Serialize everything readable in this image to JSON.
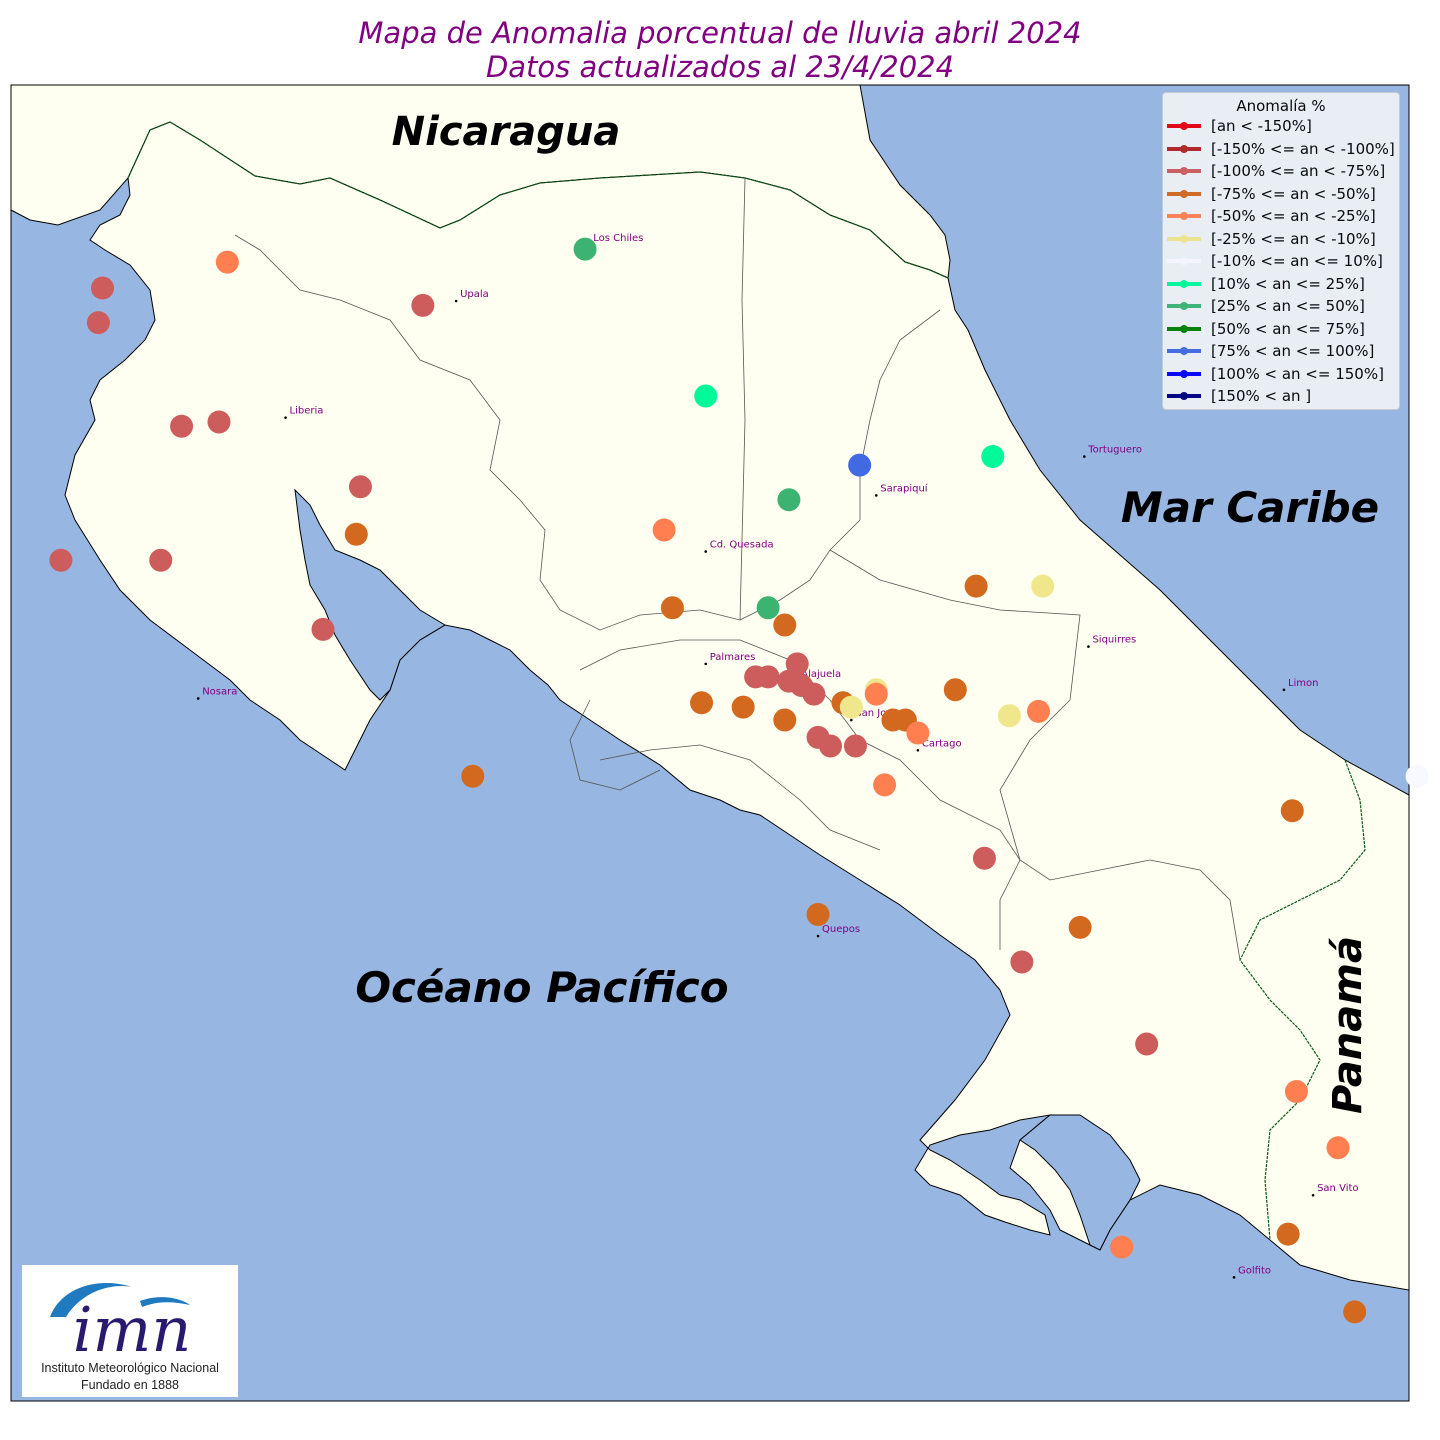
{
  "title_line1": "Mapa de Anomalia porcentual de lluvia abril 2024",
  "title_line2": "Datos actualizados al 23/4/2024",
  "colors": {
    "ocean": "#98b6e2",
    "land": "#fefff0"
  },
  "region_labels": {
    "nicaragua": "Nicaragua",
    "caribe": "Mar Caribe",
    "pacifico": "Océano Pacífico",
    "panama": "Panamá"
  },
  "cities": [
    {
      "name": "Los Chiles",
      "lon": -84.71,
      "lat": 11.03
    },
    {
      "name": "Upala",
      "lon": -85.03,
      "lat": 10.9
    },
    {
      "name": "Liberia",
      "lon": -85.44,
      "lat": 10.63
    },
    {
      "name": "Tortuguero",
      "lon": -83.52,
      "lat": 10.54
    },
    {
      "name": "Sarapiquí",
      "lon": -84.02,
      "lat": 10.45
    },
    {
      "name": "Cd. Quesada",
      "lon": -84.43,
      "lat": 10.32
    },
    {
      "name": "Siquirres",
      "lon": -83.51,
      "lat": 10.1
    },
    {
      "name": "Palmares",
      "lon": -84.43,
      "lat": 10.06
    },
    {
      "name": "Nosara",
      "lon": -85.65,
      "lat": 9.98
    },
    {
      "name": "Alajuela",
      "lon": -84.21,
      "lat": 10.02
    },
    {
      "name": "Limon",
      "lon": -83.04,
      "lat": 10.0
    },
    {
      "name": "San Jose",
      "lon": -84.08,
      "lat": 9.93
    },
    {
      "name": "Cartago",
      "lon": -83.92,
      "lat": 9.86
    },
    {
      "name": "Quepos",
      "lon": -84.16,
      "lat": 9.43
    },
    {
      "name": "San Vito",
      "lon": -82.97,
      "lat": 8.83
    },
    {
      "name": "Golfito",
      "lon": -83.16,
      "lat": 8.64
    }
  ],
  "legend": {
    "title": "Anomalía %",
    "items": [
      {
        "label": "[an < -150%]",
        "color": "#e5000e"
      },
      {
        "label": "[-150% <= an < -100%]",
        "color": "#b22222"
      },
      {
        "label": "[-100% <= an < -75%]",
        "color": "#cd5c5c"
      },
      {
        "label": "[-75% <= an < -50%]",
        "color": "#d2691e"
      },
      {
        "label": "[-50% <= an < -25%]",
        "color": "#ff7f50"
      },
      {
        "label": "[-25% <= an < -10%]",
        "color": "#f0e68c"
      },
      {
        "label": "[-10% <= an <= 10%]",
        "color": "#f8f8ff"
      },
      {
        "label": "[10% < an <= 25%]",
        "color": "#00fa9a"
      },
      {
        "label": "[25% < an <= 50%]",
        "color": "#3cb371"
      },
      {
        "label": "[50% < an <= 75%]",
        "color": "#008000"
      },
      {
        "label": "[75% < an <= 100%]",
        "color": "#4169e1"
      },
      {
        "label": "[100% < an <= 150%]",
        "color": "#0000ff"
      },
      {
        "label": "[150% < an ]",
        "color": "#000080"
      }
    ]
  },
  "stations": [
    {
      "lon": -84.72,
      "lat": 11.02,
      "cat": 8
    },
    {
      "lon": -85.58,
      "lat": 10.99,
      "cat": 4
    },
    {
      "lon": -85.88,
      "lat": 10.93,
      "cat": 2
    },
    {
      "lon": -85.89,
      "lat": 10.85,
      "cat": 2
    },
    {
      "lon": -85.11,
      "lat": 10.89,
      "cat": 2
    },
    {
      "lon": -84.43,
      "lat": 10.68,
      "cat": 7
    },
    {
      "lon": -85.69,
      "lat": 10.61,
      "cat": 2
    },
    {
      "lon": -85.6,
      "lat": 10.62,
      "cat": 2
    },
    {
      "lon": -83.74,
      "lat": 10.54,
      "cat": 7
    },
    {
      "lon": -84.06,
      "lat": 10.52,
      "cat": 10
    },
    {
      "lon": -84.23,
      "lat": 10.44,
      "cat": 8
    },
    {
      "lon": -85.26,
      "lat": 10.47,
      "cat": 2
    },
    {
      "lon": -85.27,
      "lat": 10.36,
      "cat": 3
    },
    {
      "lon": -84.53,
      "lat": 10.37,
      "cat": 4
    },
    {
      "lon": -85.74,
      "lat": 10.3,
      "cat": 2
    },
    {
      "lon": -85.98,
      "lat": 10.3,
      "cat": 2
    },
    {
      "lon": -85.35,
      "lat": 10.14,
      "cat": 2
    },
    {
      "lon": -84.51,
      "lat": 10.19,
      "cat": 3
    },
    {
      "lon": -83.78,
      "lat": 10.24,
      "cat": 3
    },
    {
      "lon": -83.62,
      "lat": 10.24,
      "cat": 5
    },
    {
      "lon": -84.28,
      "lat": 10.19,
      "cat": 8
    },
    {
      "lon": -84.24,
      "lat": 10.15,
      "cat": 3
    },
    {
      "lon": -84.31,
      "lat": 10.03,
      "cat": 2
    },
    {
      "lon": -84.28,
      "lat": 10.03,
      "cat": 2
    },
    {
      "lon": -84.21,
      "lat": 10.06,
      "cat": 2
    },
    {
      "lon": -84.23,
      "lat": 10.02,
      "cat": 2
    },
    {
      "lon": -84.2,
      "lat": 10.01,
      "cat": 2
    },
    {
      "lon": -84.17,
      "lat": 9.99,
      "cat": 2
    },
    {
      "lon": -84.1,
      "lat": 9.97,
      "cat": 3
    },
    {
      "lon": -84.08,
      "lat": 9.96,
      "cat": 5
    },
    {
      "lon": -84.02,
      "lat": 10.0,
      "cat": 5
    },
    {
      "lon": -84.02,
      "lat": 9.99,
      "cat": 4
    },
    {
      "lon": -83.83,
      "lat": 10.0,
      "cat": 3
    },
    {
      "lon": -84.44,
      "lat": 9.97,
      "cat": 3
    },
    {
      "lon": -84.34,
      "lat": 9.96,
      "cat": 3
    },
    {
      "lon": -84.24,
      "lat": 9.93,
      "cat": 3
    },
    {
      "lon": -84.16,
      "lat": 9.89,
      "cat": 2
    },
    {
      "lon": -84.13,
      "lat": 9.87,
      "cat": 2
    },
    {
      "lon": -84.07,
      "lat": 9.87,
      "cat": 2
    },
    {
      "lon": -83.98,
      "lat": 9.93,
      "cat": 3
    },
    {
      "lon": -83.95,
      "lat": 9.93,
      "cat": 3
    },
    {
      "lon": -83.92,
      "lat": 9.9,
      "cat": 4
    },
    {
      "lon": -83.7,
      "lat": 9.94,
      "cat": 5
    },
    {
      "lon": -83.63,
      "lat": 9.95,
      "cat": 4
    },
    {
      "lon": -84.99,
      "lat": 9.8,
      "cat": 3
    },
    {
      "lon": -84.0,
      "lat": 9.78,
      "cat": 4
    },
    {
      "lon": -83.02,
      "lat": 9.72,
      "cat": 3
    },
    {
      "lon": -83.76,
      "lat": 9.61,
      "cat": 2
    },
    {
      "lon": -84.16,
      "lat": 9.48,
      "cat": 3
    },
    {
      "lon": -83.53,
      "lat": 9.45,
      "cat": 3
    },
    {
      "lon": -83.67,
      "lat": 9.37,
      "cat": 2
    },
    {
      "lon": -83.37,
      "lat": 9.18,
      "cat": 2
    },
    {
      "lon": -83.01,
      "lat": 9.07,
      "cat": 4
    },
    {
      "lon": -82.91,
      "lat": 8.94,
      "cat": 4
    },
    {
      "lon": -83.03,
      "lat": 8.74,
      "cat": 3
    },
    {
      "lon": -83.43,
      "lat": 8.71,
      "cat": 4
    },
    {
      "lon": -82.87,
      "lat": 8.56,
      "cat": 3
    },
    {
      "lon": -82.72,
      "lat": 9.8,
      "cat": 6
    }
  ],
  "logo": {
    "mark": "imn",
    "line1": "Instituto Meteorológico Nacional",
    "line2": "Fundado en 1888"
  }
}
